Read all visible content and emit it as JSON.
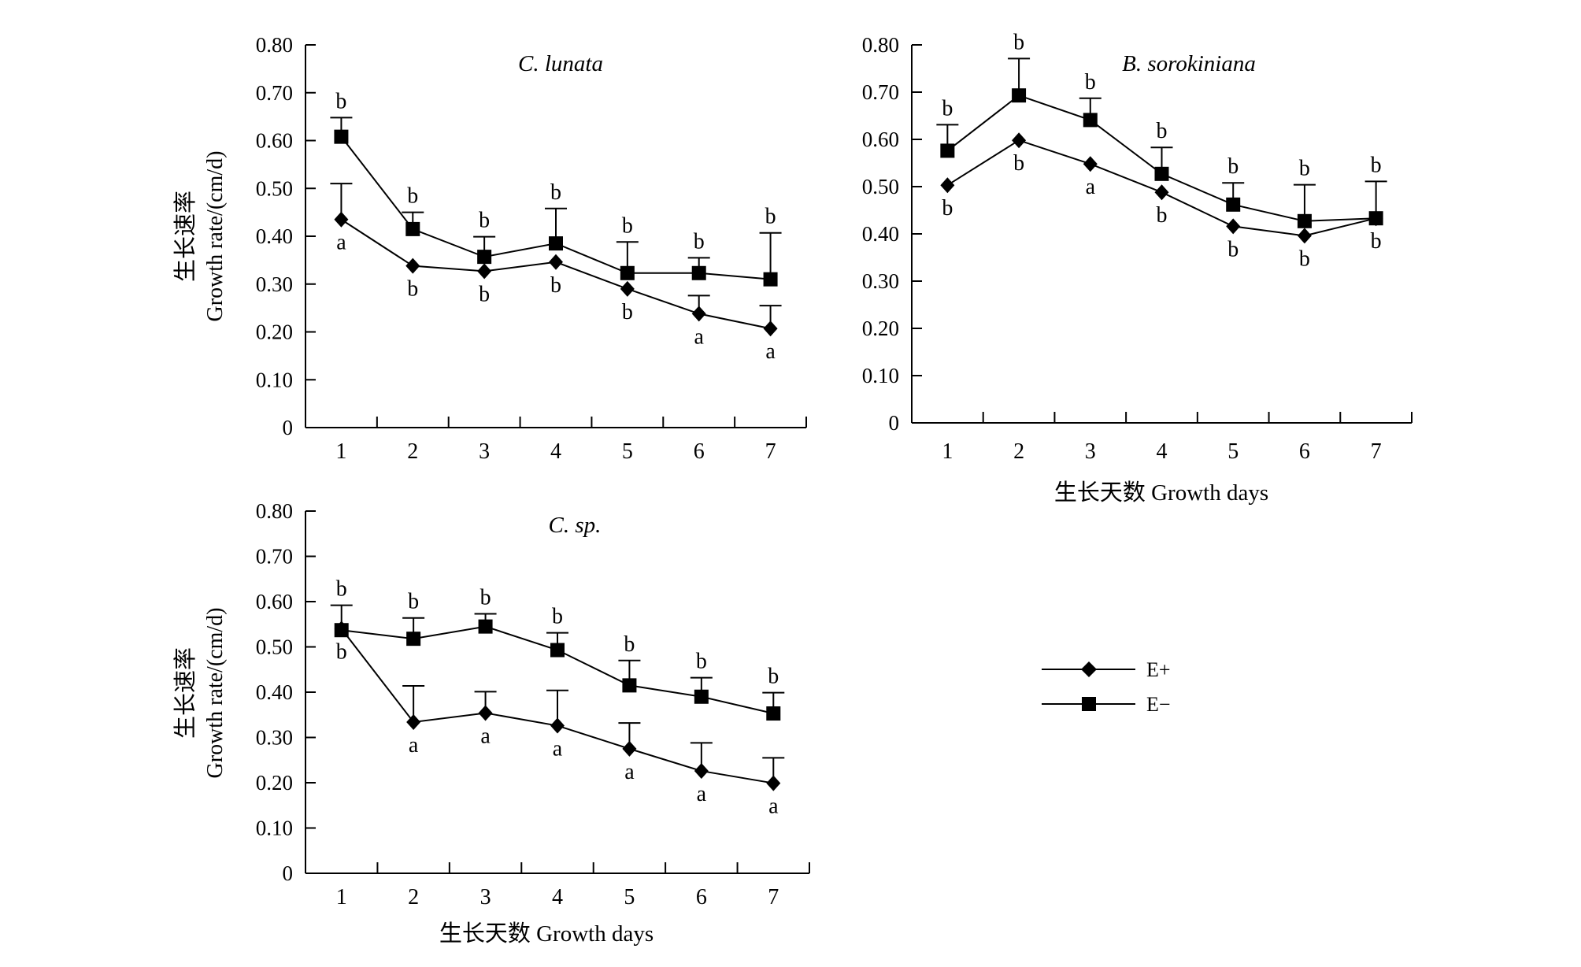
{
  "chart_data": [
    {
      "type": "line",
      "title": "C. lunata",
      "ylabel_cn": "生长速率",
      "ylabel_en": "Growth rate/(cm/d)",
      "xlabel_cn": "",
      "xlabel_en": "",
      "x": [
        1,
        2,
        3,
        4,
        5,
        6,
        7
      ],
      "xticks": [
        "1",
        "2",
        "3",
        "4",
        "5",
        "6",
        "7"
      ],
      "ylim": [
        0,
        0.8
      ],
      "yticks": [
        "0",
        "0.10",
        "0.20",
        "0.30",
        "0.40",
        "0.50",
        "0.60",
        "0.70",
        "0.80"
      ],
      "grid": false,
      "series": [
        {
          "name": "E+",
          "marker": "diamond",
          "values": [
            0.435,
            0.338,
            0.327,
            0.346,
            0.29,
            0.238,
            0.207
          ],
          "error": [
            0.075,
            0.0,
            0.0,
            0.0,
            0.0,
            0.038,
            0.048
          ],
          "letters": [
            "a",
            "b",
            "b",
            "b",
            "b",
            "a",
            "a"
          ]
        },
        {
          "name": "E−",
          "marker": "square",
          "values": [
            0.608,
            0.415,
            0.357,
            0.385,
            0.323,
            0.323,
            0.31
          ],
          "error": [
            0.04,
            0.035,
            0.042,
            0.073,
            0.065,
            0.032,
            0.097
          ],
          "letters": [
            "b",
            "b",
            "b",
            "b",
            "b",
            "b",
            "b"
          ]
        }
      ]
    },
    {
      "type": "line",
      "title": "B. sorokiniana",
      "ylabel_cn": "",
      "ylabel_en": "",
      "xlabel_cn": "生长天数",
      "xlabel_en": "Growth days",
      "x": [
        1,
        2,
        3,
        4,
        5,
        6,
        7
      ],
      "xticks": [
        "1",
        "2",
        "3",
        "4",
        "5",
        "6",
        "7"
      ],
      "ylim": [
        0,
        0.8
      ],
      "yticks": [
        "0",
        "0.10",
        "0.20",
        "0.30",
        "0.40",
        "0.50",
        "0.60",
        "0.70",
        "0.80"
      ],
      "grid": false,
      "series": [
        {
          "name": "E+",
          "marker": "diamond",
          "values": [
            0.503,
            0.598,
            0.548,
            0.488,
            0.416,
            0.396,
            0.433
          ],
          "error": [
            0.0,
            0.0,
            0.0,
            0.0,
            0.0,
            0.0,
            0.0
          ],
          "letters": [
            "b",
            "b",
            "a",
            "b",
            "b",
            "b",
            "b"
          ]
        },
        {
          "name": "E−",
          "marker": "square",
          "values": [
            0.576,
            0.693,
            0.641,
            0.527,
            0.462,
            0.427,
            0.433
          ],
          "error": [
            0.055,
            0.078,
            0.046,
            0.056,
            0.046,
            0.077,
            0.078
          ],
          "letters": [
            "b",
            "b",
            "b",
            "b",
            "b",
            "b",
            "b"
          ]
        }
      ]
    },
    {
      "type": "line",
      "title": "C. sp.",
      "ylabel_cn": "生长速率",
      "ylabel_en": "Growth rate/(cm/d)",
      "xlabel_cn": "生长天数",
      "xlabel_en": "Growth days",
      "x": [
        1,
        2,
        3,
        4,
        5,
        6,
        7
      ],
      "xticks": [
        "1",
        "2",
        "3",
        "4",
        "5",
        "6",
        "7"
      ],
      "ylim": [
        0,
        0.8
      ],
      "yticks": [
        "0",
        "0.10",
        "0.20",
        "0.30",
        "0.40",
        "0.50",
        "0.60",
        "0.70",
        "0.80"
      ],
      "grid": false,
      "series": [
        {
          "name": "E+",
          "marker": "diamond",
          "values": [
            0.54,
            0.334,
            0.354,
            0.326,
            0.275,
            0.226,
            0.199
          ],
          "error": [
            0.0,
            0.08,
            0.047,
            0.078,
            0.057,
            0.062,
            0.056
          ],
          "letters": [
            "b",
            "a",
            "a",
            "a",
            "a",
            "a",
            "a"
          ]
        },
        {
          "name": "E−",
          "marker": "square",
          "values": [
            0.537,
            0.518,
            0.545,
            0.493,
            0.415,
            0.39,
            0.353
          ],
          "error": [
            0.055,
            0.046,
            0.028,
            0.038,
            0.055,
            0.042,
            0.046
          ],
          "letters": [
            "b",
            "b",
            "b",
            "b",
            "b",
            "b",
            "b"
          ]
        }
      ]
    }
  ],
  "legend": {
    "placement": "right of bottom-left panel",
    "items": [
      {
        "label": "E+",
        "marker": "diamond"
      },
      {
        "label": "E−",
        "marker": "square"
      }
    ]
  }
}
